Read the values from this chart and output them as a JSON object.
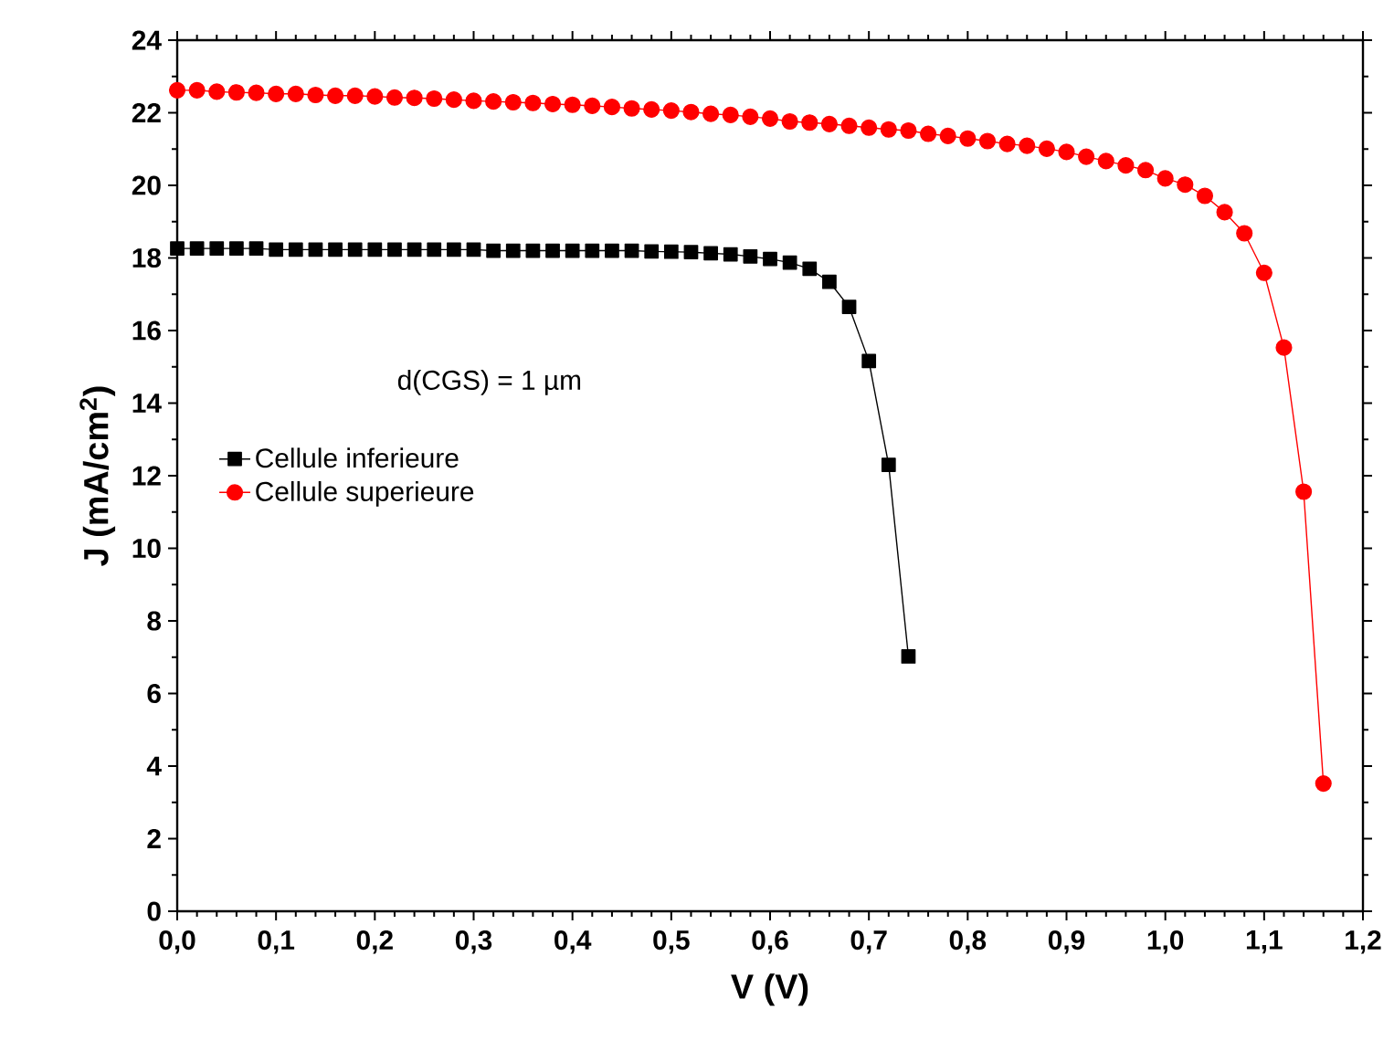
{
  "chart_data": {
    "type": "line",
    "xlabel": "V (V)",
    "ylabel": "J (mA/cm$^{2}$)",
    "xlim": [
      0,
      1.2
    ],
    "xticks": [
      {
        "value": 0,
        "label": "0,0"
      },
      {
        "value": 0.1,
        "label": "0,1"
      },
      {
        "value": 0.2,
        "label": "0,2"
      },
      {
        "value": 0.3,
        "label": "0,3"
      },
      {
        "value": 0.4,
        "label": "0,4"
      },
      {
        "value": 0.5,
        "label": "0,5"
      },
      {
        "value": 0.6,
        "label": "0,6"
      },
      {
        "value": 0.7,
        "label": "0,7"
      },
      {
        "value": 0.8,
        "label": "0,8"
      },
      {
        "value": 0.9,
        "label": "0,9"
      },
      {
        "value": 1.0,
        "label": "1,0"
      },
      {
        "value": 1.1,
        "label": "1,1"
      },
      {
        "value": 1.2,
        "label": "1,2"
      }
    ],
    "ylim": [
      0,
      24
    ],
    "yticks": [
      0,
      2,
      4,
      6,
      8,
      10,
      12,
      14,
      16,
      18,
      20,
      22,
      24
    ],
    "annotations": [
      "d(CGS) = 1 µm"
    ],
    "legend": "left",
    "grid": false,
    "line_style": "solid",
    "series": [
      {
        "name": "Cellule inferieure",
        "color": "#000000",
        "marker": "square",
        "x": [
          0,
          0.02,
          0.04,
          0.06,
          0.08,
          0.1,
          0.12,
          0.14,
          0.16,
          0.18,
          0.2,
          0.22,
          0.24,
          0.26,
          0.28,
          0.3,
          0.32,
          0.34,
          0.36,
          0.38,
          0.4,
          0.42,
          0.44,
          0.46,
          0.48,
          0.5,
          0.52,
          0.54,
          0.56,
          0.58,
          0.6,
          0.62,
          0.64,
          0.66,
          0.68,
          0.7,
          0.72,
          0.74
        ],
        "values": [
          18.26,
          18.26,
          18.26,
          18.26,
          18.26,
          18.23,
          18.23,
          18.23,
          18.23,
          18.23,
          18.23,
          18.23,
          18.23,
          18.23,
          18.23,
          18.23,
          18.2,
          18.2,
          18.2,
          18.2,
          18.2,
          18.2,
          18.2,
          18.2,
          18.18,
          18.17,
          18.16,
          18.13,
          18.1,
          18.04,
          17.97,
          17.87,
          17.7,
          17.34,
          16.65,
          15.16,
          12.3,
          7.02
        ]
      },
      {
        "name": "Cellule superieure",
        "color": "#ff0000",
        "marker": "circle",
        "x": [
          0,
          0.02,
          0.04,
          0.06,
          0.08,
          0.1,
          0.12,
          0.14,
          0.16,
          0.18,
          0.2,
          0.22,
          0.24,
          0.26,
          0.28,
          0.3,
          0.32,
          0.34,
          0.36,
          0.38,
          0.4,
          0.42,
          0.44,
          0.46,
          0.48,
          0.5,
          0.52,
          0.54,
          0.56,
          0.58,
          0.6,
          0.62,
          0.64,
          0.66,
          0.68,
          0.7,
          0.72,
          0.74,
          0.76,
          0.78,
          0.8,
          0.82,
          0.84,
          0.86,
          0.88,
          0.9,
          0.92,
          0.94,
          0.96,
          0.98,
          1.0,
          1.02,
          1.04,
          1.06,
          1.08,
          1.1,
          1.12,
          1.14,
          1.16
        ],
        "values": [
          22.62,
          22.62,
          22.58,
          22.56,
          22.55,
          22.52,
          22.52,
          22.49,
          22.47,
          22.47,
          22.45,
          22.42,
          22.41,
          22.39,
          22.36,
          22.33,
          22.31,
          22.29,
          22.27,
          22.24,
          22.22,
          22.19,
          22.16,
          22.12,
          22.09,
          22.06,
          22.02,
          21.97,
          21.94,
          21.89,
          21.84,
          21.76,
          21.73,
          21.69,
          21.64,
          21.59,
          21.54,
          21.51,
          21.42,
          21.36,
          21.29,
          21.22,
          21.14,
          21.09,
          21.01,
          20.92,
          20.79,
          20.67,
          20.55,
          20.42,
          20.19,
          20.02,
          19.71,
          19.26,
          18.68,
          17.59,
          15.53,
          11.56,
          3.52
        ]
      }
    ]
  }
}
